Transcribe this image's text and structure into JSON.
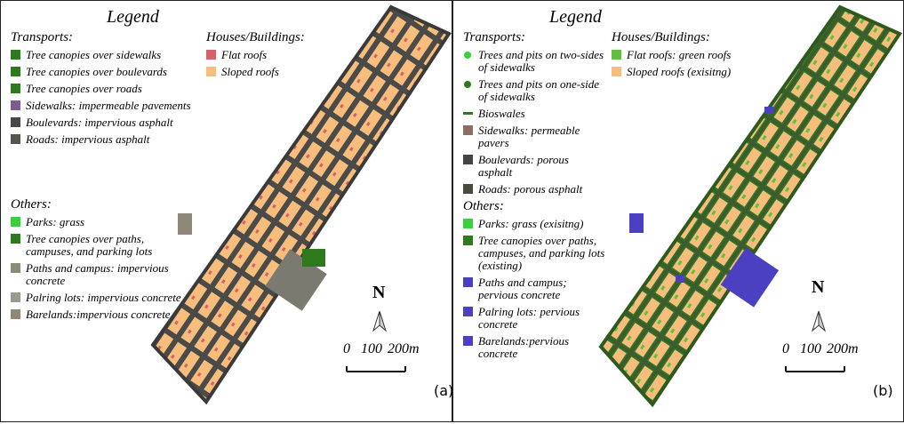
{
  "panels": [
    {
      "title": "Legend",
      "groups": [
        {
          "heading": "Transports:",
          "items": [
            {
              "label": "Tree canopies over sidewalks",
              "color": "#2f7a1e",
              "shape": "square"
            },
            {
              "label": "Tree canopies over boulevards",
              "color": "#2f7a1e",
              "shape": "square"
            },
            {
              "label": "Tree canopies over roads",
              "color": "#2f7a1e",
              "shape": "square"
            },
            {
              "label": "Sidewalks: impermeable pavements",
              "color": "#7d5c8e",
              "shape": "square"
            },
            {
              "label": "Boulevards: impervious asphalt",
              "color": "#474747",
              "shape": "square"
            },
            {
              "label": "Roads: impervious asphalt",
              "color": "#555550",
              "shape": "square"
            }
          ]
        },
        {
          "heading": "Houses/Buildings:",
          "items": [
            {
              "label": "Flat roofs",
              "color": "#d8606a",
              "shape": "square"
            },
            {
              "label": "Sloped roofs",
              "color": "#f6bd7c",
              "shape": "square"
            }
          ]
        },
        {
          "heading": "Others:",
          "items": [
            {
              "label": "Parks: grass",
              "color": "#3ccf3c",
              "shape": "square"
            },
            {
              "label": "Tree canopies over paths, campuses, and parking lots",
              "color": "#2f7a1e",
              "shape": "square"
            },
            {
              "label": "Paths and campus: impervious concrete",
              "color": "#8a8a78",
              "shape": "square"
            },
            {
              "label": "Palring lots: impervious concrete",
              "color": "#9a9a90",
              "shape": "square"
            },
            {
              "label": "Barelands:impervious concrete",
              "color": "#8e8878",
              "shape": "square"
            }
          ]
        }
      ],
      "north": "N",
      "scale": [
        "0",
        "100",
        "200m"
      ],
      "label": "(a)"
    },
    {
      "title": "Legend",
      "groups": [
        {
          "heading": "Transports:",
          "items": [
            {
              "label": "Trees and pits on two-sides of sidewalks",
              "color": "#3ccf3c",
              "shape": "dot"
            },
            {
              "label": "Trees and pits on one-side of sidewalks",
              "color": "#2f7a1e",
              "shape": "dot"
            },
            {
              "label": "Bioswales",
              "color": "#2f7a1e",
              "shape": "line"
            },
            {
              "label": "Sidewalks: permeable pavers",
              "color": "#8b6f62",
              "shape": "square"
            },
            {
              "label": "Boulevards: porous asphalt",
              "color": "#444444",
              "shape": "square"
            },
            {
              "label": "Roads: porous asphalt",
              "color": "#4a4a3c",
              "shape": "square"
            }
          ]
        },
        {
          "heading": "Houses/Buildings:",
          "items": [
            {
              "label": "Flat roofs: green roofs",
              "color": "#5fc040",
              "shape": "square"
            },
            {
              "label": "Sloped roofs (exisitng)",
              "color": "#f6bd7c",
              "shape": "square"
            }
          ]
        },
        {
          "heading": "Others:",
          "items": [
            {
              "label": "Parks: grass (exisitng)",
              "color": "#3ccf3c",
              "shape": "square"
            },
            {
              "label": "Tree canopies over paths, campuses, and parking lots (existing)",
              "color": "#2f7a1e",
              "shape": "square"
            },
            {
              "label": "Paths and campus; pervious concrete",
              "color": "#4b3fc2",
              "shape": "square"
            },
            {
              "label": "Palring lots: pervious concrete",
              "color": "#4b3fc2",
              "shape": "square"
            },
            {
              "label": "Barelands:pervious concrete",
              "color": "#4b3fc2",
              "shape": "square"
            }
          ]
        }
      ],
      "north": "N",
      "scale": [
        "0",
        "100",
        "200m"
      ],
      "label": "(b)"
    }
  ]
}
